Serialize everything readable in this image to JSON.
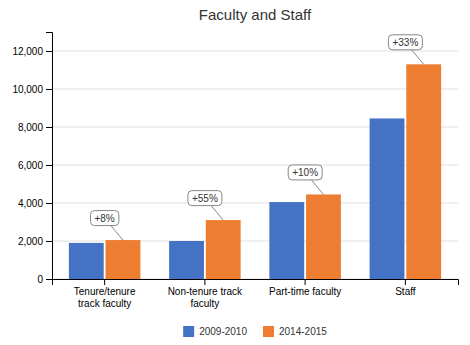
{
  "chart_data": {
    "type": "bar",
    "title": "Faculty and Staff",
    "categories": [
      "Tenure/tenure\ntrack faculty",
      "Non-tenure track\nfaculty",
      "Part-time faculty",
      "Staff"
    ],
    "series": [
      {
        "name": "2009-2010",
        "color": "#4472C4",
        "values": [
          1900,
          2000,
          4050,
          8450
        ]
      },
      {
        "name": "2014-2015",
        "color": "#ED7D31",
        "values": [
          2050,
          3100,
          4450,
          11300
        ]
      }
    ],
    "ylim": [
      0,
      13000
    ],
    "yticks": [
      0,
      {
        "value": 2000,
        "label": "2,000"
      },
      {
        "value": 4000,
        "label": "4,000"
      },
      {
        "value": 6000,
        "label": "6,000"
      },
      {
        "value": 8000,
        "label": "8,000"
      },
      {
        "value": 10000,
        "label": "10,000"
      },
      {
        "value": 12000,
        "label": "12,000"
      }
    ],
    "grid": true,
    "legend": "bottom",
    "annotations": [
      "+8%",
      "+55%",
      "+10%",
      "+33%"
    ]
  }
}
